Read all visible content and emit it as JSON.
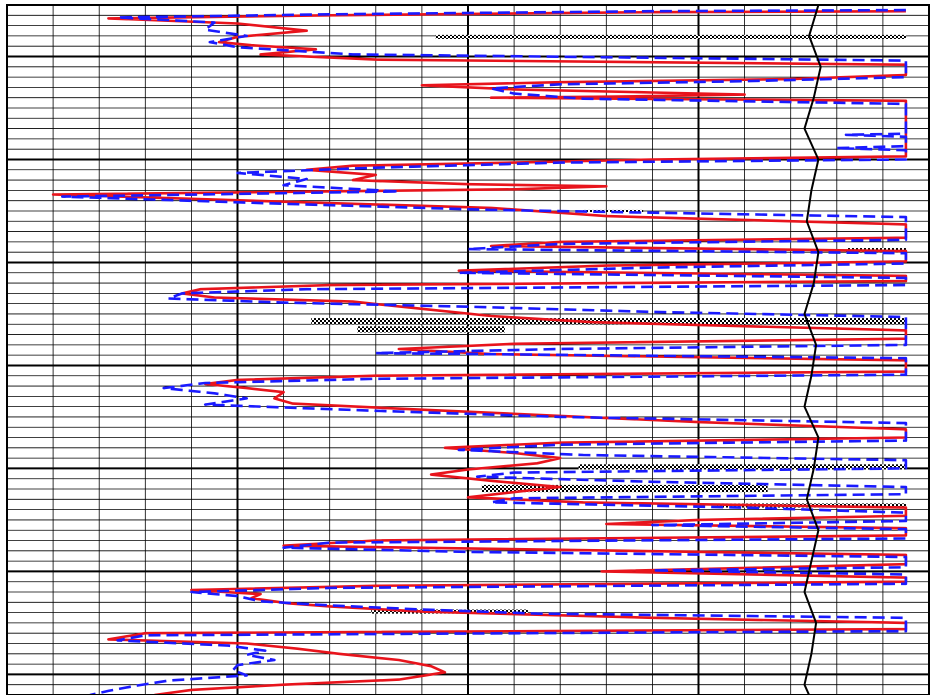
{
  "chart_data": {
    "type": "line",
    "title": "",
    "xlabel": "",
    "ylabel": "",
    "grid": true,
    "x_range": [
      0,
      20
    ],
    "y_range": [
      0,
      67
    ],
    "colors": {
      "solid_curve": "#e8141c",
      "dashed_curve": "#1a1aff",
      "reference_curve": "#000000",
      "crossover_fill": "checkered-black-white",
      "grid": "#000000"
    },
    "series": [
      {
        "style": "solid",
        "color": "#e8141c",
        "points": [
          [
            19.5,
            0.6
          ],
          [
            14,
            0.7
          ],
          [
            7,
            1.0
          ],
          [
            2.2,
            1.3
          ],
          [
            5,
            1.8
          ],
          [
            6.5,
            2.5
          ],
          [
            5,
            3.1
          ],
          [
            4.6,
            3.6
          ],
          [
            5.3,
            3.9
          ],
          [
            6.7,
            4.3
          ],
          [
            5.5,
            4.8
          ],
          [
            8,
            5.3
          ],
          [
            19.5,
            5.8
          ],
          [
            19.5,
            6.8
          ],
          [
            17,
            7.2
          ],
          [
            12,
            7.5
          ],
          [
            9,
            7.8
          ],
          [
            11,
            8.2
          ],
          [
            14,
            8.5
          ],
          [
            16,
            8.7
          ],
          [
            13,
            8.9
          ],
          [
            10.5,
            9.0
          ],
          [
            19.5,
            9.3
          ],
          [
            19.5,
            14.7
          ],
          [
            14,
            15.0
          ],
          [
            11,
            15.3
          ],
          [
            7.5,
            15.6
          ],
          [
            6.5,
            16.0
          ],
          [
            8,
            16.5
          ],
          [
            7.5,
            17.0
          ],
          [
            10,
            17.4
          ],
          [
            13,
            17.6
          ],
          [
            11,
            17.9
          ],
          [
            1.0,
            18.4
          ],
          [
            6,
            19.1
          ],
          [
            10.5,
            19.7
          ],
          [
            13,
            20.5
          ],
          [
            19.5,
            21.3
          ],
          [
            19.5,
            22.6
          ],
          [
            12,
            23.0
          ],
          [
            10.5,
            23.4
          ],
          [
            19.5,
            23.9
          ],
          [
            19.5,
            24.9
          ],
          [
            13,
            25.3
          ],
          [
            9.8,
            25.8
          ],
          [
            19.5,
            26.3
          ],
          [
            19.5,
            26.8
          ],
          [
            7,
            27.2
          ],
          [
            4.2,
            27.6
          ],
          [
            3.8,
            28.0
          ],
          [
            4.5,
            28.4
          ],
          [
            7.5,
            28.8
          ],
          [
            9,
            29.5
          ],
          [
            10.5,
            30.2
          ],
          [
            12.7,
            30.8
          ],
          [
            19.5,
            31.6
          ],
          [
            19.5,
            32.4
          ],
          [
            11,
            32.9
          ],
          [
            8.5,
            33.4
          ],
          [
            10.5,
            33.9
          ],
          [
            19.5,
            34.5
          ],
          [
            19.5,
            35.6
          ],
          [
            8,
            36.0
          ],
          [
            5,
            36.4
          ],
          [
            4.3,
            36.8
          ],
          [
            5.2,
            37.2
          ],
          [
            6.0,
            37.6
          ],
          [
            5.8,
            38.2
          ],
          [
            6.2,
            38.7
          ],
          [
            9,
            39.3
          ],
          [
            12,
            39.9
          ],
          [
            15,
            40.5
          ],
          [
            19.5,
            41.2
          ],
          [
            19.5,
            42.0
          ],
          [
            12,
            42.5
          ],
          [
            9.5,
            43.0
          ],
          [
            11,
            43.5
          ],
          [
            12,
            44.0
          ],
          [
            11.5,
            44.5
          ],
          [
            10,
            45.1
          ],
          [
            9.2,
            45.6
          ],
          [
            10.5,
            46.2
          ],
          [
            12,
            46.8
          ],
          [
            11,
            47.3
          ],
          [
            10,
            47.8
          ],
          [
            12.5,
            48.3
          ],
          [
            19.5,
            48.8
          ],
          [
            19.5,
            49.6
          ],
          [
            15,
            50.0
          ],
          [
            13,
            50.4
          ],
          [
            19.5,
            50.8
          ],
          [
            19.5,
            51.5
          ],
          [
            8,
            52.0
          ],
          [
            6,
            52.5
          ],
          [
            12,
            52.9
          ],
          [
            19.5,
            53.4
          ],
          [
            19.5,
            54.3
          ],
          [
            12.9,
            55.0
          ],
          [
            19.5,
            55.6
          ],
          [
            19.5,
            56.0
          ],
          [
            8,
            56.4
          ],
          [
            4,
            56.8
          ],
          [
            5.5,
            57.2
          ],
          [
            5.3,
            57.6
          ],
          [
            6.1,
            58.1
          ],
          [
            7,
            58.4
          ],
          [
            9,
            58.9
          ],
          [
            14,
            59.5
          ],
          [
            19.5,
            60.0
          ],
          [
            19.5,
            60.6
          ],
          [
            3,
            61.0
          ],
          [
            2.2,
            61.6
          ],
          [
            5.2,
            62.0
          ],
          [
            6.3,
            62.5
          ],
          [
            7.2,
            63.0
          ],
          [
            8.5,
            63.6
          ],
          [
            9.2,
            64.2
          ],
          [
            9.5,
            64.8
          ],
          [
            8.5,
            65.5
          ],
          [
            6,
            66.0
          ],
          [
            4,
            66.5
          ],
          [
            3.2,
            67.0
          ]
        ]
      },
      {
        "style": "dashed",
        "color": "#1a1aff",
        "points": [
          [
            19.5,
            0.5
          ],
          [
            14,
            0.6
          ],
          [
            7,
            0.9
          ],
          [
            2.4,
            1.2
          ],
          [
            4.5,
            1.7
          ],
          [
            4.3,
            2.4
          ],
          [
            5.2,
            3.0
          ],
          [
            4.4,
            3.6
          ],
          [
            5.0,
            4.1
          ],
          [
            7.5,
            4.8
          ],
          [
            19.5,
            5.4
          ],
          [
            19.5,
            7.0
          ],
          [
            16,
            7.4
          ],
          [
            12,
            7.7
          ],
          [
            10.5,
            8.1
          ],
          [
            11,
            8.6
          ],
          [
            12.5,
            9.1
          ],
          [
            19.5,
            9.6
          ],
          [
            19.5,
            12.5
          ],
          [
            18.2,
            12.6
          ],
          [
            19.5,
            12.8
          ],
          [
            19.5,
            13.7
          ],
          [
            18.0,
            13.9
          ],
          [
            19.5,
            14.1
          ],
          [
            19.5,
            15.0
          ],
          [
            12,
            15.3
          ],
          [
            8,
            15.8
          ],
          [
            5,
            16.3
          ],
          [
            6.5,
            16.9
          ],
          [
            6.0,
            17.5
          ],
          [
            8.5,
            18.1
          ],
          [
            1.2,
            18.6
          ],
          [
            6,
            19.3
          ],
          [
            10.5,
            19.9
          ],
          [
            19.5,
            20.6
          ],
          [
            19.5,
            22.8
          ],
          [
            12,
            23.2
          ],
          [
            10,
            23.7
          ],
          [
            19.5,
            24.1
          ],
          [
            19.5,
            25.1
          ],
          [
            14,
            25.5
          ],
          [
            9.8,
            26.0
          ],
          [
            19.5,
            26.5
          ],
          [
            19.5,
            27.2
          ],
          [
            6.5,
            27.6
          ],
          [
            3.8,
            28.0
          ],
          [
            3.5,
            28.5
          ],
          [
            6,
            28.9
          ],
          [
            10,
            29.3
          ],
          [
            14,
            29.8
          ],
          [
            19.5,
            30.3
          ],
          [
            19.5,
            33.0
          ],
          [
            12,
            33.4
          ],
          [
            8,
            33.8
          ],
          [
            19.5,
            34.3
          ],
          [
            19.5,
            35.9
          ],
          [
            8,
            36.3
          ],
          [
            4.3,
            36.7
          ],
          [
            3.4,
            37.2
          ],
          [
            4.5,
            37.7
          ],
          [
            5.2,
            38.2
          ],
          [
            4.3,
            38.8
          ],
          [
            8,
            39.4
          ],
          [
            12,
            40.0
          ],
          [
            19.5,
            40.6
          ],
          [
            19.5,
            42.3
          ],
          [
            12,
            42.7
          ],
          [
            9.8,
            43.2
          ],
          [
            12.5,
            43.7
          ],
          [
            19.5,
            44.2
          ],
          [
            19.5,
            45.0
          ],
          [
            11,
            45.4
          ],
          [
            10.2,
            45.8
          ],
          [
            14,
            46.3
          ],
          [
            19.5,
            46.8
          ],
          [
            19.5,
            47.5
          ],
          [
            11,
            47.9
          ],
          [
            10.5,
            48.3
          ],
          [
            16,
            48.8
          ],
          [
            19.5,
            49.3
          ],
          [
            19.5,
            50.1
          ],
          [
            14,
            50.5
          ],
          [
            19.5,
            50.9
          ],
          [
            19.5,
            51.8
          ],
          [
            7,
            52.2
          ],
          [
            6,
            52.7
          ],
          [
            10,
            53.1
          ],
          [
            19.5,
            53.6
          ],
          [
            19.5,
            54.6
          ],
          [
            14,
            54.9
          ],
          [
            19.5,
            55.3
          ],
          [
            19.5,
            56.2
          ],
          [
            7,
            56.6
          ],
          [
            4.0,
            57.0
          ],
          [
            5.0,
            57.4
          ],
          [
            5.5,
            57.9
          ],
          [
            7,
            58.3
          ],
          [
            9,
            58.7
          ],
          [
            11.5,
            59.1
          ],
          [
            19.5,
            59.5
          ],
          [
            19.5,
            60.8
          ],
          [
            3,
            61.2
          ],
          [
            2.4,
            61.7
          ],
          [
            4.8,
            62.2
          ],
          [
            5.6,
            62.7
          ],
          [
            5.2,
            63.1
          ],
          [
            5.8,
            63.6
          ],
          [
            5.0,
            64.1
          ],
          [
            4.9,
            64.6
          ],
          [
            5.2,
            65.1
          ],
          [
            3.5,
            65.6
          ],
          [
            2.8,
            66.1
          ],
          [
            2.2,
            66.6
          ],
          [
            1.8,
            67.0
          ]
        ]
      },
      {
        "style": "solid",
        "color": "#000000",
        "points": [
          [
            17.6,
            0
          ],
          [
            17.4,
            3
          ],
          [
            17.65,
            6
          ],
          [
            17.5,
            9
          ],
          [
            17.3,
            12
          ],
          [
            17.6,
            15
          ],
          [
            17.45,
            18
          ],
          [
            17.35,
            21
          ],
          [
            17.6,
            24
          ],
          [
            17.5,
            27
          ],
          [
            17.3,
            30
          ],
          [
            17.55,
            33
          ],
          [
            17.45,
            36
          ],
          [
            17.3,
            39
          ],
          [
            17.6,
            42
          ],
          [
            17.5,
            45
          ],
          [
            17.35,
            48
          ],
          [
            17.6,
            51
          ],
          [
            17.45,
            54
          ],
          [
            17.3,
            57
          ],
          [
            17.55,
            60
          ],
          [
            17.45,
            63
          ],
          [
            17.3,
            66
          ],
          [
            17.4,
            67
          ]
        ]
      }
    ],
    "crossover_bands": [
      {
        "y": [
          2.9,
          3.3
        ],
        "x": [
          9.3,
          19.5
        ]
      },
      {
        "y": [
          19.9,
          20.1
        ],
        "x": [
          12.5,
          13.8
        ]
      },
      {
        "y": [
          30.4,
          31.0
        ],
        "x": [
          6.6,
          19.5
        ]
      },
      {
        "y": [
          31.2,
          31.8
        ],
        "x": [
          7.6,
          10.8
        ]
      },
      {
        "y": [
          23.6,
          24.0
        ],
        "x": [
          18.2,
          19.5
        ]
      },
      {
        "y": [
          44.6,
          45.1
        ],
        "x": [
          12.4,
          19.5
        ]
      },
      {
        "y": [
          46.6,
          47.3
        ],
        "x": [
          10.3,
          16.5
        ]
      },
      {
        "y": [
          48.4,
          48.8
        ],
        "x": [
          15.4,
          19.5
        ]
      },
      {
        "y": [
          58.7,
          59.1
        ],
        "x": [
          7.9,
          11.3
        ]
      }
    ]
  }
}
